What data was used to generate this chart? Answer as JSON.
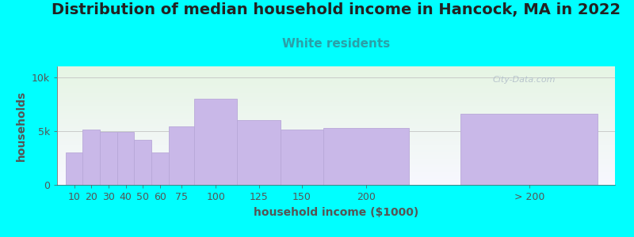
{
  "title": "Distribution of median household income in Hancock, MA in 2022",
  "subtitle": "White residents",
  "xlabel": "household income ($1000)",
  "ylabel": "households",
  "background_color": "#00FFFF",
  "plot_bg_top": "#e6f5e4",
  "plot_bg_bottom": "#f8f8ff",
  "bar_color": "#c9b8e8",
  "bar_edge_color": "#b8a8d8",
  "categories": [
    "10",
    "20",
    "30",
    "40",
    "50",
    "60",
    "75",
    "100",
    "125",
    "150",
    "200",
    "> 200"
  ],
  "values": [
    3000,
    5100,
    4900,
    4900,
    4200,
    3000,
    5400,
    8000,
    6000,
    5100,
    5300,
    6600
  ],
  "bar_lefts": [
    0,
    10,
    20,
    30,
    40,
    50,
    60,
    75,
    100,
    125,
    150,
    230
  ],
  "bar_widths": [
    10,
    10,
    10,
    10,
    10,
    10,
    15,
    25,
    25,
    25,
    50,
    80
  ],
  "ylim": [
    0,
    11000
  ],
  "ytick_vals": [
    0,
    5000,
    10000
  ],
  "ytick_labels": [
    "0",
    "5k",
    "10k"
  ],
  "xlim": [
    -5,
    320
  ],
  "xtick_positions": [
    5,
    15,
    25,
    35,
    45,
    55,
    67.5,
    87.5,
    112.5,
    137.5,
    175,
    270
  ],
  "title_fontsize": 14,
  "subtitle_fontsize": 11,
  "label_fontsize": 10,
  "tick_fontsize": 9,
  "watermark_text": "City-Data.com",
  "title_color": "#222222",
  "subtitle_color": "#2aa0a8",
  "axis_color": "#555555",
  "watermark_color": "#b0bcc8"
}
